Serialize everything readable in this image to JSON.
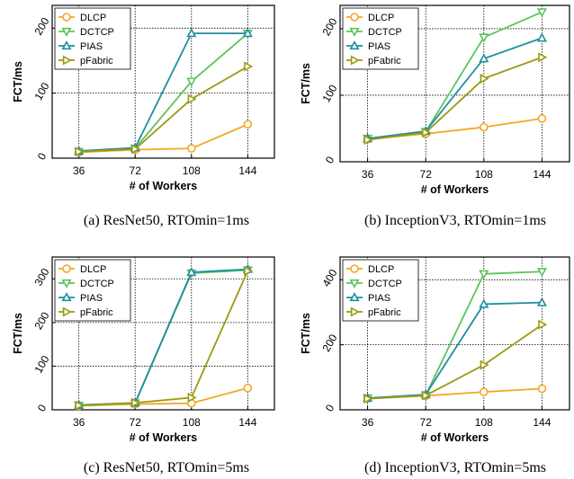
{
  "chart_data": [
    {
      "type": "line",
      "caption": "(a)  ResNet50, RTOmin=1ms",
      "xlabel": "# of Workers",
      "ylabel": "FCT/ms",
      "categories": [
        "36",
        "72",
        "108",
        "144"
      ],
      "ylim": [
        0,
        235
      ],
      "yticks": [
        0,
        100,
        200
      ],
      "grid": true,
      "legend": "top-left",
      "series": [
        {
          "name": "DLCP",
          "color": "#f5a623",
          "marker": "circle",
          "values": [
            9,
            13,
            15,
            52
          ]
        },
        {
          "name": "DCTCP",
          "color": "#5cc45c",
          "marker": "triangle-down",
          "values": [
            10,
            15,
            118,
            192
          ]
        },
        {
          "name": "PIAS",
          "color": "#1f8fa0",
          "marker": "triangle-up",
          "values": [
            11,
            16,
            192,
            192
          ]
        },
        {
          "name": "pFabric",
          "color": "#9a9a12",
          "marker": "triangle-right",
          "values": [
            10,
            14,
            91,
            141
          ]
        }
      ]
    },
    {
      "type": "line",
      "caption": "(b)  InceptionV3, RTOmin=1ms",
      "xlabel": "# of Workers",
      "ylabel": "FCT/ms",
      "categories": [
        "36",
        "72",
        "108",
        "144"
      ],
      "ylim": [
        0,
        235
      ],
      "yticks": [
        0,
        100,
        200
      ],
      "grid": true,
      "legend": "top-left",
      "series": [
        {
          "name": "DLCP",
          "color": "#f5a623",
          "marker": "circle",
          "values": [
            34,
            42,
            52,
            65
          ]
        },
        {
          "name": "DCTCP",
          "color": "#5cc45c",
          "marker": "triangle-down",
          "values": [
            35,
            45,
            187,
            225
          ]
        },
        {
          "name": "PIAS",
          "color": "#1f8fa0",
          "marker": "triangle-up",
          "values": [
            35,
            46,
            155,
            186
          ]
        },
        {
          "name": "pFabric",
          "color": "#9a9a12",
          "marker": "triangle-right",
          "values": [
            33,
            44,
            125,
            157
          ]
        }
      ]
    },
    {
      "type": "line",
      "caption": "(c)  ResNet50, RTOmin=5ms",
      "xlabel": "# of Workers",
      "ylabel": "FCT/ms",
      "categories": [
        "36",
        "72",
        "108",
        "144"
      ],
      "ylim": [
        0,
        350
      ],
      "yticks": [
        0,
        100,
        200,
        300
      ],
      "grid": true,
      "legend": "top-left",
      "series": [
        {
          "name": "DLCP",
          "color": "#f5a623",
          "marker": "circle",
          "values": [
            9,
            13,
            15,
            50
          ]
        },
        {
          "name": "DCTCP",
          "color": "#5cc45c",
          "marker": "triangle-down",
          "values": [
            10,
            15,
            313,
            320
          ]
        },
        {
          "name": "PIAS",
          "color": "#1f8fa0",
          "marker": "triangle-up",
          "values": [
            11,
            16,
            315,
            322
          ]
        },
        {
          "name": "pFabric",
          "color": "#9a9a12",
          "marker": "triangle-right",
          "values": [
            10,
            16,
            28,
            318
          ]
        }
      ]
    },
    {
      "type": "line",
      "caption": "(d)  InceptionV3, RTOmin=5ms",
      "xlabel": "# of Workers",
      "ylabel": "FCT/ms",
      "categories": [
        "36",
        "72",
        "108",
        "144"
      ],
      "ylim": [
        0,
        470
      ],
      "yticks": [
        0,
        200,
        400
      ],
      "grid": true,
      "legend": "top-left",
      "series": [
        {
          "name": "DLCP",
          "color": "#f5a623",
          "marker": "circle",
          "values": [
            35,
            43,
            55,
            65
          ]
        },
        {
          "name": "DCTCP",
          "color": "#5cc45c",
          "marker": "triangle-down",
          "values": [
            36,
            45,
            418,
            425
          ]
        },
        {
          "name": "PIAS",
          "color": "#1f8fa0",
          "marker": "triangle-up",
          "values": [
            36,
            47,
            325,
            330
          ]
        },
        {
          "name": "pFabric",
          "color": "#9a9a12",
          "marker": "triangle-right",
          "values": [
            34,
            44,
            138,
            262
          ]
        }
      ]
    }
  ]
}
